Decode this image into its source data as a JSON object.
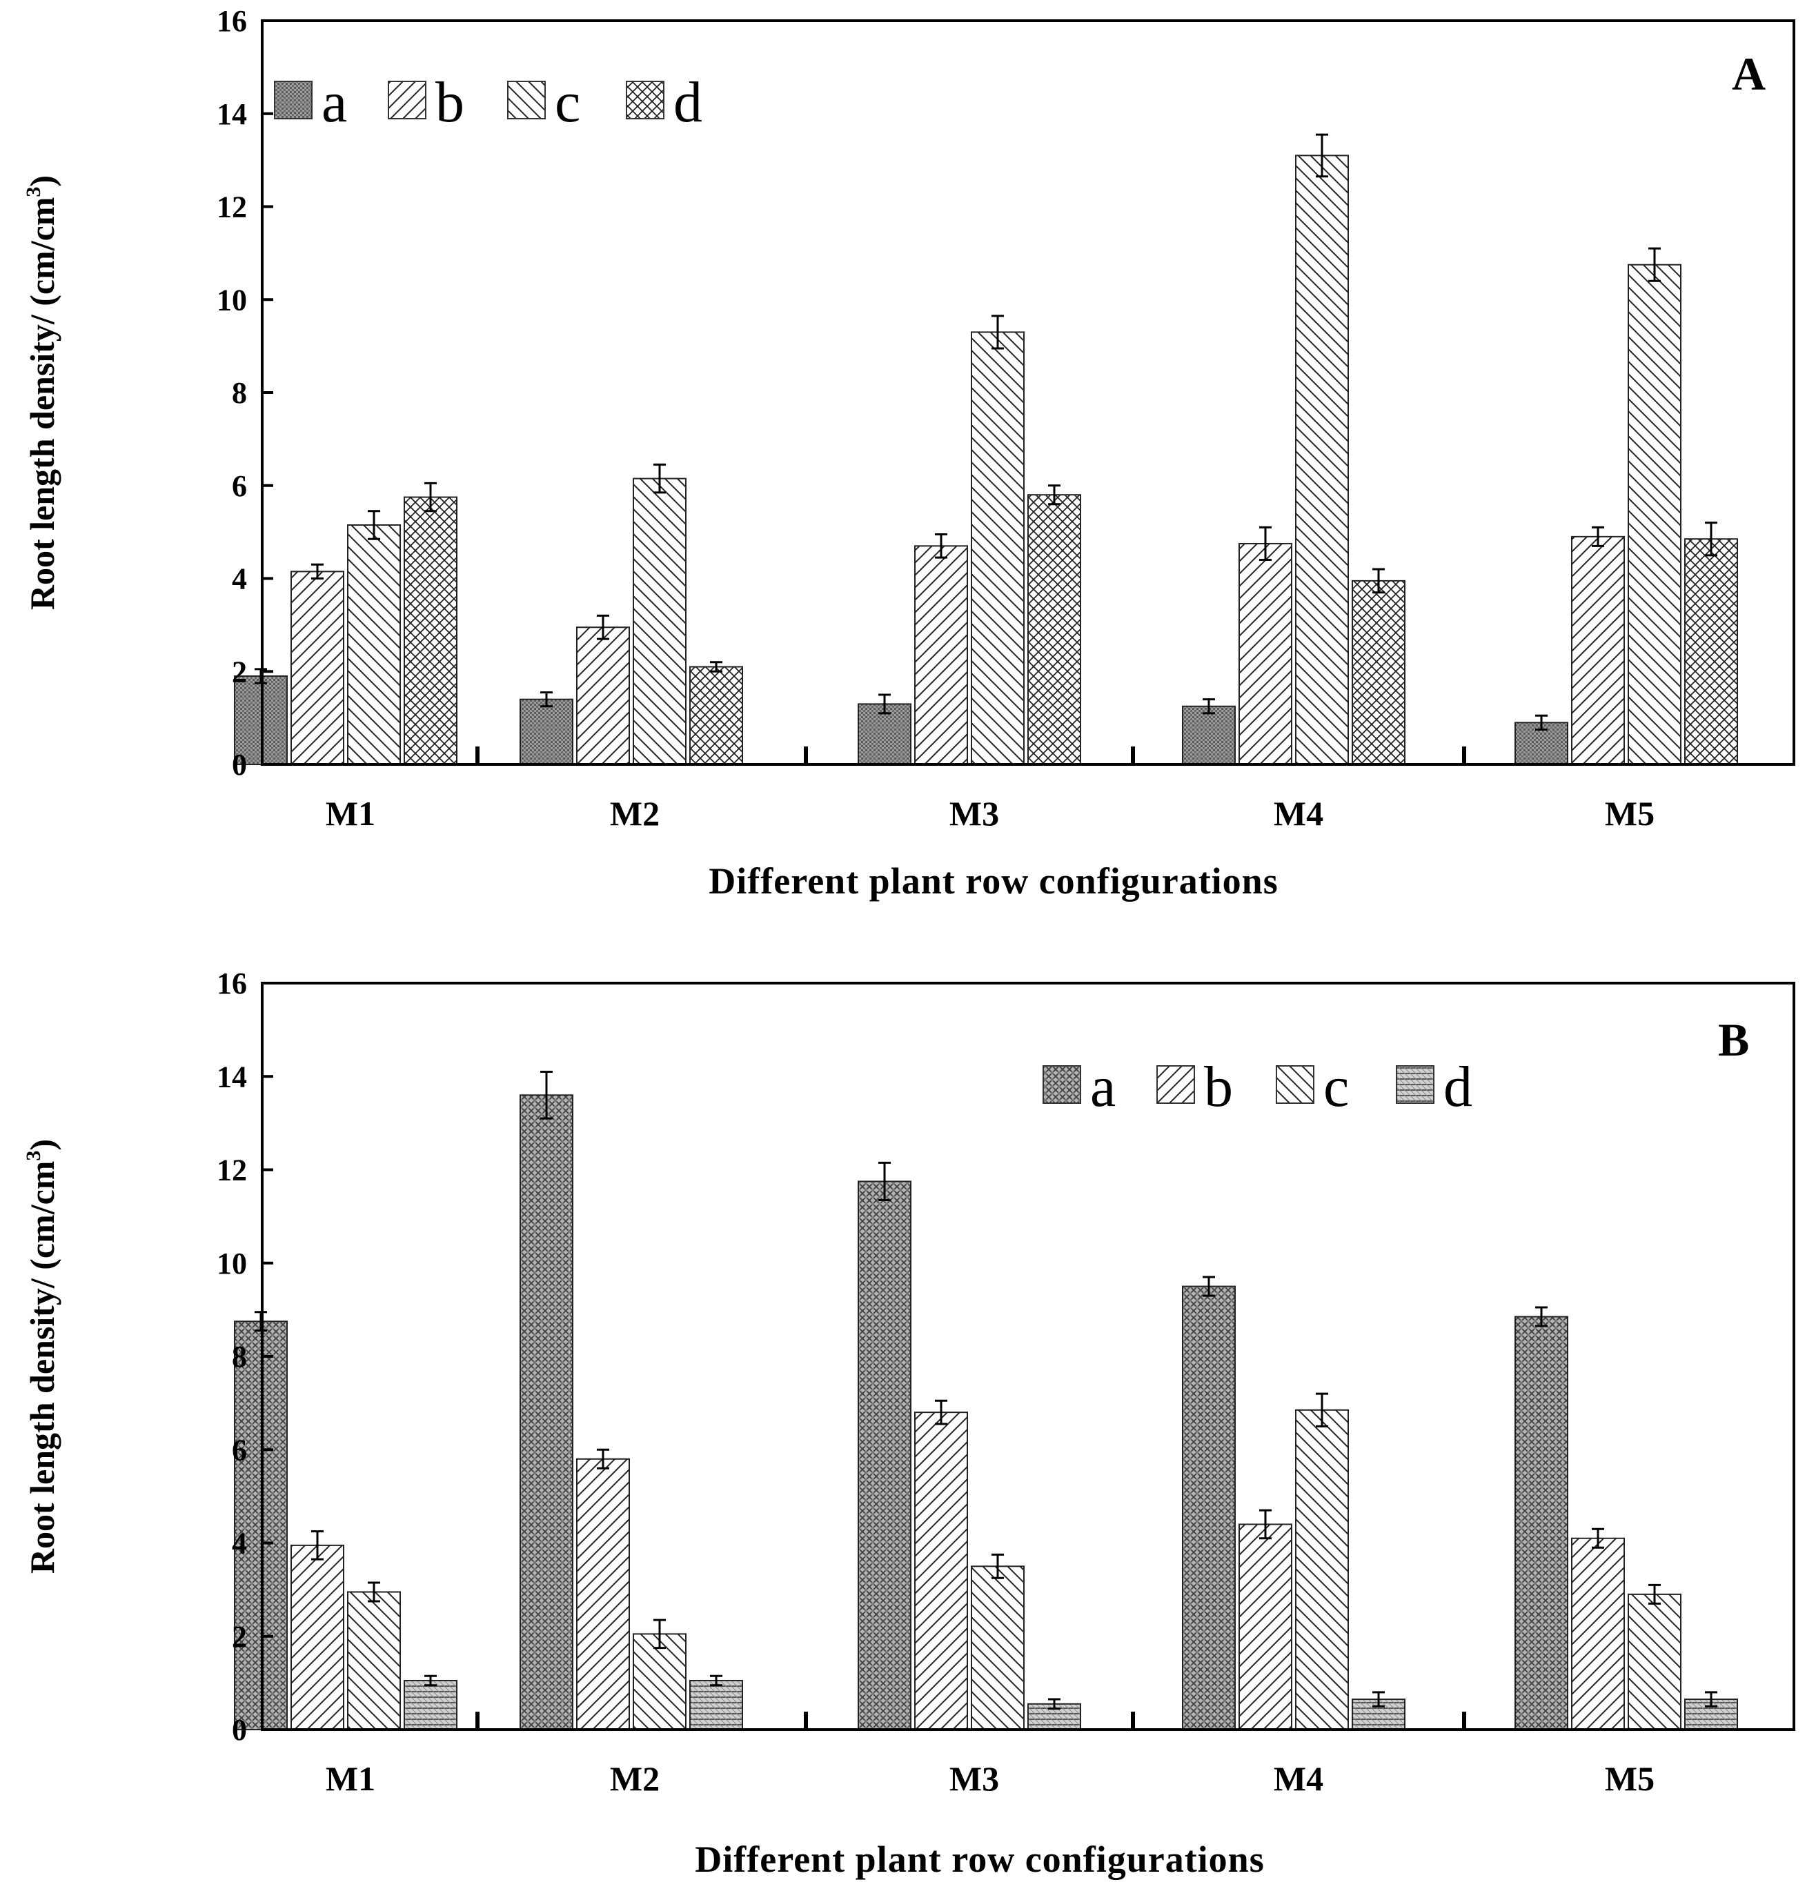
{
  "chart_data": [
    {
      "type": "bar",
      "panel_label": "A",
      "xlabel": "Different plant row configurations",
      "ylabel": "Root length density/ (cm/cm",
      "ylabel_sup": "3",
      "ylabel_end": ")",
      "ylim": [
        0,
        16
      ],
      "yticks": [
        "0",
        "2",
        "4",
        "6",
        "8",
        "10",
        "12",
        "14",
        "16"
      ],
      "categories": [
        "M1",
        "M2",
        "M3",
        "M4",
        "M5"
      ],
      "legend_position": "top-left",
      "series": [
        {
          "name": "a",
          "values": [
            1.9,
            1.4,
            1.3,
            1.25,
            0.9
          ],
          "errors": [
            0.15,
            0.15,
            0.2,
            0.15,
            0.15
          ]
        },
        {
          "name": "b",
          "values": [
            4.15,
            2.95,
            4.7,
            4.75,
            4.9
          ],
          "errors": [
            0.15,
            0.25,
            0.25,
            0.35,
            0.2
          ]
        },
        {
          "name": "c",
          "values": [
            5.15,
            6.15,
            9.3,
            13.1,
            10.75
          ],
          "errors": [
            0.3,
            0.3,
            0.35,
            0.45,
            0.35
          ]
        },
        {
          "name": "d",
          "values": [
            5.75,
            2.1,
            5.8,
            3.95,
            4.85
          ],
          "errors": [
            0.3,
            0.1,
            0.2,
            0.25,
            0.35
          ]
        }
      ]
    },
    {
      "type": "bar",
      "panel_label": "B",
      "xlabel": "Different plant row configurations",
      "ylabel": "Root length density/ (cm/cm",
      "ylabel_sup": "3",
      "ylabel_end": ")",
      "ylim": [
        0,
        16
      ],
      "yticks": [
        "0",
        "2",
        "4",
        "6",
        "8",
        "10",
        "12",
        "14",
        "16"
      ],
      "categories": [
        "M1",
        "M2",
        "M3",
        "M4",
        "M5"
      ],
      "legend_position": "top-right",
      "series": [
        {
          "name": "a",
          "values": [
            8.75,
            13.6,
            11.75,
            9.5,
            8.85
          ],
          "errors": [
            0.2,
            0.5,
            0.4,
            0.2,
            0.2
          ]
        },
        {
          "name": "b",
          "values": [
            3.95,
            5.8,
            6.8,
            4.4,
            4.1
          ],
          "errors": [
            0.3,
            0.2,
            0.25,
            0.3,
            0.2
          ]
        },
        {
          "name": "c",
          "values": [
            2.95,
            2.05,
            3.5,
            6.85,
            2.9
          ],
          "errors": [
            0.2,
            0.3,
            0.25,
            0.35,
            0.2
          ]
        },
        {
          "name": "d",
          "values": [
            1.05,
            1.05,
            0.55,
            0.65,
            0.65
          ],
          "errors": [
            0.1,
            0.1,
            0.1,
            0.15,
            0.15
          ]
        }
      ]
    }
  ]
}
